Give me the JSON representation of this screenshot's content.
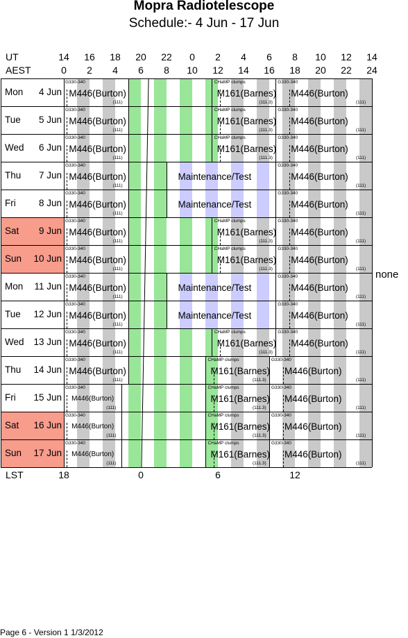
{
  "header": {
    "title": "Mopra Radiotelescope",
    "subtitle": "Schedule:- 4  Jun - 17 Jun"
  },
  "axis": {
    "ut_label": "UT",
    "aest_label": "AEST",
    "lst_label": "LST",
    "ut_ticks": [
      "14",
      "16",
      "18",
      "20",
      "22",
      "0",
      "2",
      "4",
      "6",
      "8",
      "10",
      "12",
      "14"
    ],
    "aest_ticks": [
      "0",
      "2",
      "4",
      "6",
      "8",
      "10",
      "12",
      "14",
      "16",
      "18",
      "20",
      "22",
      "24"
    ],
    "lst_ticks": [
      "18",
      "0",
      "6",
      "12"
    ]
  },
  "days": [
    {
      "dow": "Mon",
      "date": "4  Jun",
      "weekend": false,
      "type": "A"
    },
    {
      "dow": "Tue",
      "date": "5  Jun",
      "weekend": false,
      "type": "A"
    },
    {
      "dow": "Wed",
      "date": "6  Jun",
      "weekend": false,
      "type": "A"
    },
    {
      "dow": "Thu",
      "date": "7  Jun",
      "weekend": false,
      "type": "M"
    },
    {
      "dow": "Fri",
      "date": "8  Jun",
      "weekend": false,
      "type": "M"
    },
    {
      "dow": "Sat",
      "date": "9  Jun",
      "weekend": true,
      "type": "A"
    },
    {
      "dow": "Sun",
      "date": "10 Jun",
      "weekend": true,
      "type": "A"
    },
    {
      "dow": "Mon",
      "date": "11 Jun",
      "weekend": false,
      "type": "M"
    },
    {
      "dow": "Tue",
      "date": "12 Jun",
      "weekend": false,
      "type": "M"
    },
    {
      "dow": "Wed",
      "date": "13 Jun",
      "weekend": false,
      "type": "A"
    },
    {
      "dow": "Thu",
      "date": "14 Jun",
      "weekend": false,
      "type": "B"
    },
    {
      "dow": "Fri",
      "date": "15 Jun",
      "weekend": false,
      "type": "C"
    },
    {
      "dow": "Sat",
      "date": "16 Jun",
      "weekend": true,
      "type": "C"
    },
    {
      "dow": "Sun",
      "date": "17 Jun",
      "weekend": true,
      "type": "C"
    }
  ],
  "blocks": {
    "g330_label": "G330-340",
    "m446": "M446(Burton)",
    "m446_code": "(111)",
    "champ_label": "CHaMP clumps",
    "m161": "M161(Barnes)",
    "m161_code": "(111.3)",
    "maintenance": "Maintenance/Test"
  },
  "side_note": "none",
  "footer": "Page 6 - Version 1  1/3/2012"
}
